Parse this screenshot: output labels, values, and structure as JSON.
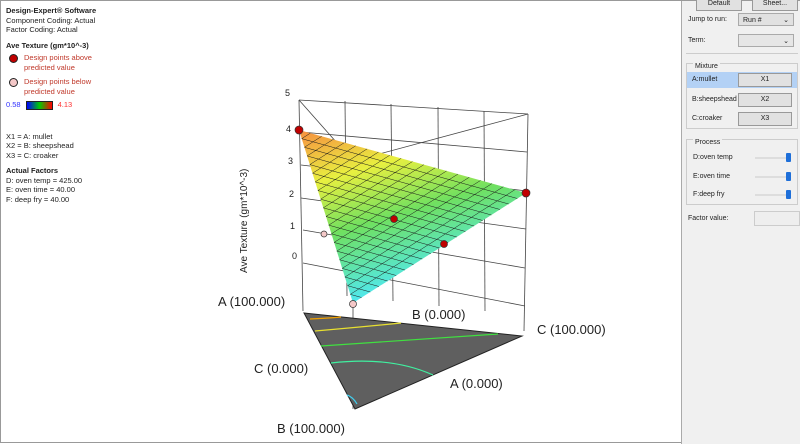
{
  "legend": {
    "title": "Design-Expert® Software",
    "coding1": "Component Coding: Actual",
    "coding2": "Factor Coding: Actual",
    "response": "Ave Texture (gm*10^-3)",
    "above1": "Design points above",
    "above2": "predicted value",
    "below1": "Design points below",
    "below2": "predicted value",
    "min": "0.58",
    "max": "4.13",
    "x1": "X1 = A: mullet",
    "x2": "X2 = B: sheepshead",
    "x3": "X3 = C: croaker",
    "actual_title": "Actual Factors",
    "d": "D: oven temp = 425.00",
    "e": "E: oven time = 40.00",
    "f": "F: deep fry = 40.00"
  },
  "plot": {
    "z_label": "Ave Texture (gm*10^-3)",
    "z_ticks": [
      "5",
      "4",
      "3",
      "2",
      "1",
      "0"
    ],
    "a_hi": "A (100.000)",
    "b_lo": "B (0.000)",
    "c_hi": "C (100.000)",
    "c_lo": "C (0.000)",
    "a_lo": "A (0.000)",
    "b_hi": "B (100.000)"
  },
  "panel": {
    "default_btn": "Default",
    "sheet_btn": "Sheet...",
    "jump_label": "Jump to run:",
    "jump_value": "Run #",
    "term_label": "Term:",
    "term_value": "",
    "mixture_title": "Mixture",
    "a_label": "A:mullet",
    "b_label": "B:sheepshead",
    "c_label": "C:croaker",
    "x1": "X1",
    "x2": "X2",
    "x3": "X3",
    "process_title": "Process",
    "d_label": "D:oven temp",
    "e_label": "E:oven time",
    "f_label": "F:deep fry",
    "d_value": 1.0,
    "e_value": 1.0,
    "f_value": 1.0,
    "factor_label": "Factor value:",
    "factor_value": ""
  },
  "colors": {
    "above": "#c00000",
    "below": "#f4c8c8",
    "accent": "#1e6fd9"
  }
}
